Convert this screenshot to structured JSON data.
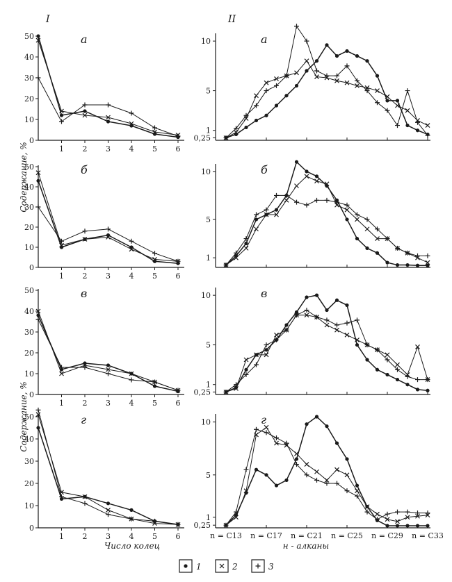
{
  "figure": {
    "section_left": "I",
    "section_right": "II",
    "ylabel": "Содержание, %",
    "xlabel_left": "Число колец",
    "xlabel_right": "н - алканы",
    "legend": [
      {
        "key": "1",
        "marker": "dot"
      },
      {
        "key": "2",
        "marker": "cross"
      },
      {
        "key": "3",
        "marker": "plus"
      }
    ],
    "right_ticks": [
      {
        "idx": 0,
        "label": "n = C13"
      },
      {
        "idx": 4,
        "label": "n = C17"
      },
      {
        "idx": 8,
        "label": "n = C21"
      },
      {
        "idx": 12,
        "label": "n = C25"
      },
      {
        "idx": 16,
        "label": "n = C29"
      },
      {
        "idx": 20,
        "label": "n = C33"
      }
    ]
  },
  "chart_data": [
    {
      "type": "line",
      "panel": "а",
      "x": [
        0,
        1,
        2,
        3,
        4,
        5,
        6
      ],
      "xticks": [
        "1",
        "2",
        "3",
        "4",
        "5",
        "6"
      ],
      "ylim": [
        0,
        50
      ],
      "yticks": [
        "0",
        "10",
        "20",
        "30",
        "40",
        "50"
      ],
      "series": [
        {
          "name": "1",
          "marker": "dot",
          "values": [
            50,
            12,
            14,
            9,
            7,
            3,
            1.5
          ]
        },
        {
          "name": "2",
          "marker": "cross",
          "values": [
            48,
            14,
            12,
            11,
            8,
            4,
            2.5
          ]
        },
        {
          "name": "3",
          "marker": "plus",
          "values": [
            30,
            9,
            17,
            17,
            13,
            6,
            2
          ]
        }
      ]
    },
    {
      "type": "line",
      "panel": "б",
      "x": [
        0,
        1,
        2,
        3,
        4,
        5,
        6
      ],
      "xticks": [
        "1",
        "2",
        "3",
        "4",
        "5",
        "6"
      ],
      "ylim": [
        0,
        50
      ],
      "yticks": [
        "0",
        "10",
        "20",
        "30",
        "40",
        "50"
      ],
      "series": [
        {
          "name": "1",
          "marker": "dot",
          "values": [
            43,
            10,
            14,
            16,
            10,
            3,
            2
          ]
        },
        {
          "name": "2",
          "marker": "cross",
          "values": [
            47,
            11,
            14,
            15,
            9,
            4,
            3
          ]
        },
        {
          "name": "3",
          "marker": "plus",
          "values": [
            30,
            13,
            18,
            19,
            13,
            7,
            3
          ]
        }
      ]
    },
    {
      "type": "line",
      "panel": "в",
      "x": [
        0,
        1,
        2,
        3,
        4,
        5,
        6
      ],
      "xticks": [
        "1",
        "2",
        "3",
        "4",
        "5",
        "6"
      ],
      "ylim": [
        0,
        50
      ],
      "yticks": [
        "0",
        "10",
        "20",
        "30",
        "40",
        "50"
      ],
      "series": [
        {
          "name": "1",
          "marker": "dot",
          "values": [
            38,
            12,
            15,
            14,
            10,
            4,
            1.5
          ]
        },
        {
          "name": "2",
          "marker": "cross",
          "values": [
            40,
            10,
            14,
            12,
            10,
            6,
            2
          ]
        },
        {
          "name": "3",
          "marker": "plus",
          "values": [
            36,
            13,
            13,
            10,
            7,
            6,
            2
          ]
        }
      ]
    },
    {
      "type": "line",
      "panel": "г",
      "x": [
        0,
        1,
        2,
        3,
        4,
        5,
        6
      ],
      "xticks": [
        "1",
        "2",
        "3",
        "4",
        "5",
        "6"
      ],
      "ylim": [
        0,
        50
      ],
      "yticks": [
        "0",
        "10",
        "20",
        "30",
        "40",
        "50"
      ],
      "series": [
        {
          "name": "1",
          "marker": "dot",
          "values": [
            45,
            13,
            14,
            11,
            8,
            3,
            1.5
          ]
        },
        {
          "name": "2",
          "marker": "cross",
          "values": [
            51,
            16,
            14,
            8,
            4,
            2,
            1.5
          ]
        },
        {
          "name": "3",
          "marker": "plus",
          "values": [
            53,
            14,
            11,
            6,
            4,
            3,
            1.5
          ]
        }
      ]
    },
    {
      "type": "line",
      "panel": "а",
      "x": [
        13,
        14,
        15,
        16,
        17,
        18,
        19,
        20,
        21,
        22,
        23,
        24,
        25,
        26,
        27,
        28,
        29,
        30,
        31,
        32,
        33
      ],
      "yticks": [
        "0,25",
        "1",
        "5",
        "10"
      ],
      "ylim": [
        0,
        10.5
      ],
      "series": [
        {
          "name": "1",
          "marker": "dot",
          "values": [
            0.25,
            0.6,
            1.3,
            2,
            2.5,
            3.5,
            4.5,
            5.5,
            7,
            8,
            9.6,
            8.5,
            9,
            8.5,
            8,
            6.5,
            4,
            4,
            1.5,
            1,
            0.6
          ]
        },
        {
          "name": "2",
          "marker": "cross",
          "values": [
            0.25,
            0.8,
            2.2,
            4.5,
            5.8,
            6.2,
            6.5,
            6.8,
            8,
            6.4,
            6.3,
            6,
            5.8,
            5.5,
            5.3,
            5,
            4.4,
            3.5,
            3,
            2,
            1.5
          ]
        },
        {
          "name": "3",
          "marker": "plus",
          "values": [
            0.25,
            1.2,
            2.5,
            3.5,
            5,
            5.5,
            6.5,
            11.5,
            10,
            7,
            6.5,
            6.5,
            7.5,
            6,
            5,
            3.8,
            3,
            1.5,
            5,
            1.8,
            0.5
          ]
        }
      ]
    },
    {
      "type": "line",
      "panel": "б",
      "x": [
        13,
        14,
        15,
        16,
        17,
        18,
        19,
        20,
        21,
        22,
        23,
        24,
        25,
        26,
        27,
        28,
        29,
        30,
        31,
        32,
        33
      ],
      "yticks": [
        "1",
        "5",
        "10"
      ],
      "ylim": [
        0,
        10.5
      ],
      "series": [
        {
          "name": "1",
          "marker": "dot",
          "values": [
            0.25,
            1.2,
            2.5,
            5,
            5.5,
            6,
            7.5,
            11,
            10,
            9.5,
            8.5,
            7,
            5,
            3,
            2,
            1.5,
            0.5,
            0.25,
            0.25,
            0.2,
            0.2
          ]
        },
        {
          "name": "2",
          "marker": "cross",
          "values": [
            0.25,
            1,
            2,
            4,
            5.5,
            5.5,
            7,
            8.5,
            9.5,
            9,
            8.7,
            6.5,
            6,
            5,
            4,
            3,
            3,
            2,
            1.5,
            1,
            0.5
          ]
        },
        {
          "name": "3",
          "marker": "plus",
          "values": [
            0.25,
            1.5,
            3,
            5.5,
            6,
            7.5,
            7.5,
            6.8,
            6.5,
            7,
            7,
            6.8,
            6.5,
            5.5,
            5,
            4,
            3,
            2,
            1.5,
            1.2,
            1.2
          ]
        }
      ]
    },
    {
      "type": "line",
      "panel": "в",
      "x": [
        13,
        14,
        15,
        16,
        17,
        18,
        19,
        20,
        21,
        22,
        23,
        24,
        25,
        26,
        27,
        28,
        29,
        30,
        31,
        32,
        33
      ],
      "yticks": [
        "0,25",
        "1",
        "5",
        "10"
      ],
      "ylim": [
        0,
        10.5
      ],
      "series": [
        {
          "name": "1",
          "marker": "dot",
          "values": [
            0.25,
            0.7,
            2.5,
            4,
            4.5,
            5.5,
            7,
            8.3,
            9.8,
            10,
            8.5,
            9.5,
            9,
            5,
            3.5,
            2.5,
            2,
            1.5,
            1,
            0.5,
            0.4
          ]
        },
        {
          "name": "2",
          "marker": "cross",
          "values": [
            0.25,
            0.6,
            3.5,
            4,
            4,
            6,
            6.5,
            8,
            8,
            7.8,
            7,
            6.5,
            6,
            5.5,
            5,
            4.5,
            4,
            3,
            2,
            4.8,
            1.5
          ]
        },
        {
          "name": "3",
          "marker": "plus",
          "values": [
            0.25,
            1,
            2,
            3,
            5,
            5.5,
            6.5,
            8,
            8.5,
            7.8,
            7.5,
            7,
            7.2,
            7.5,
            5,
            4.5,
            3.5,
            2.5,
            1.8,
            1.5,
            1.5
          ]
        }
      ]
    },
    {
      "type": "line",
      "panel": "г",
      "x": [
        13,
        14,
        15,
        16,
        17,
        18,
        19,
        20,
        21,
        22,
        23,
        24,
        25,
        26,
        27,
        28,
        29,
        30,
        31,
        32,
        33
      ],
      "yticks": [
        "0,25",
        "1",
        "5",
        "10"
      ],
      "ylim": [
        0,
        10.5
      ],
      "series": [
        {
          "name": "1",
          "marker": "dot",
          "values": [
            0.25,
            1.2,
            3.3,
            5.5,
            5,
            4,
            4.5,
            6.5,
            9.8,
            10.5,
            9.6,
            8,
            6.5,
            4,
            2,
            0.7,
            0.2,
            0.2,
            0.2,
            0.2,
            0.2
          ]
        },
        {
          "name": "2",
          "marker": "cross",
          "values": [
            0.25,
            1,
            3.5,
            8.8,
            9.5,
            8,
            7.8,
            7,
            6,
            5.3,
            4.5,
            5.5,
            5,
            3.5,
            2,
            1.3,
            0.8,
            0.6,
            1,
            1.1,
            1.2
          ]
        },
        {
          "name": "3",
          "marker": "plus",
          "values": [
            0.25,
            1.5,
            5.5,
            9.3,
            9,
            8.5,
            8,
            6,
            5,
            4.5,
            4.2,
            4.2,
            3.5,
            3,
            1.5,
            0.8,
            1.3,
            1.5,
            1.5,
            1.4,
            1.4
          ]
        }
      ]
    }
  ]
}
